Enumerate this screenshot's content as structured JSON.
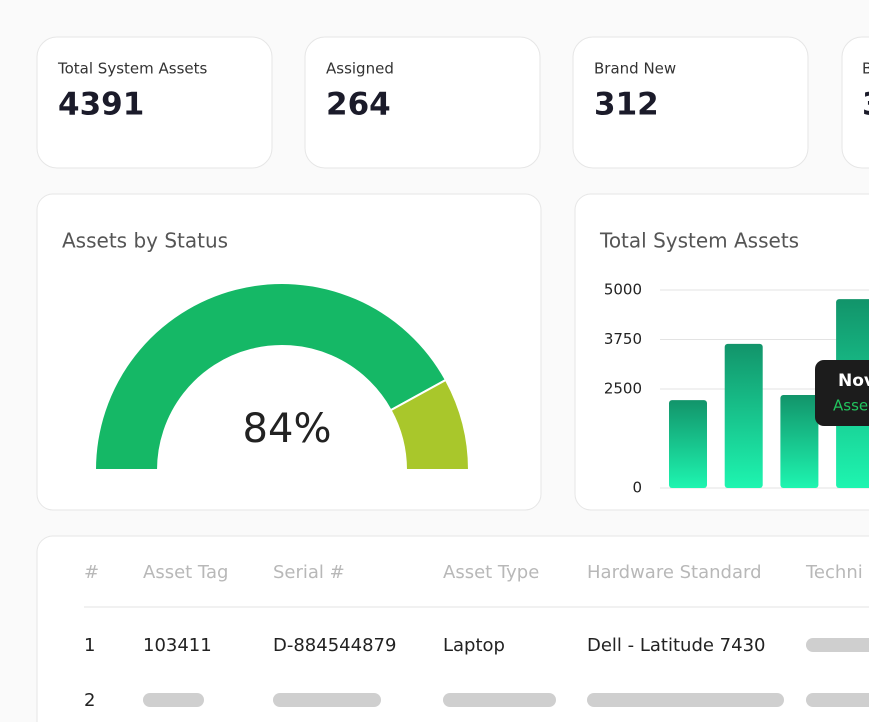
{
  "stat_cards": [
    {
      "label": "Total System Assets",
      "value": "4391"
    },
    {
      "label": "Assigned",
      "value": "264"
    },
    {
      "label": "Brand New",
      "value": "312"
    },
    {
      "label": "B",
      "value": "3"
    }
  ],
  "chart_data": [
    {
      "type": "gauge",
      "title": "Assets by Status",
      "values": [
        84,
        16
      ],
      "colors": [
        "#15b866",
        "#a9c72b"
      ],
      "center_label": "84%"
    },
    {
      "type": "bar",
      "title": "Total System Assets",
      "categories": [
        null,
        null,
        null,
        null
      ],
      "values": [
        2220,
        3640,
        2350,
        4770
      ],
      "color_top": "#12946a",
      "color_bottom": "#1ef5b0",
      "ylim": [
        0,
        5000
      ],
      "yticks": [
        0,
        2500,
        3750,
        5000
      ],
      "grid": true,
      "tooltip": {
        "title": "Nov",
        "text": "Asse"
      }
    }
  ],
  "table": {
    "headers": [
      "#",
      "Asset Tag",
      "Serial #",
      "Asset Type",
      "Hardware Standard",
      "Techni"
    ],
    "rows": [
      [
        "1",
        "103411",
        "D-884544879",
        "Laptop",
        "Dell - Latitude 7430"
      ],
      [
        "2"
      ]
    ]
  }
}
